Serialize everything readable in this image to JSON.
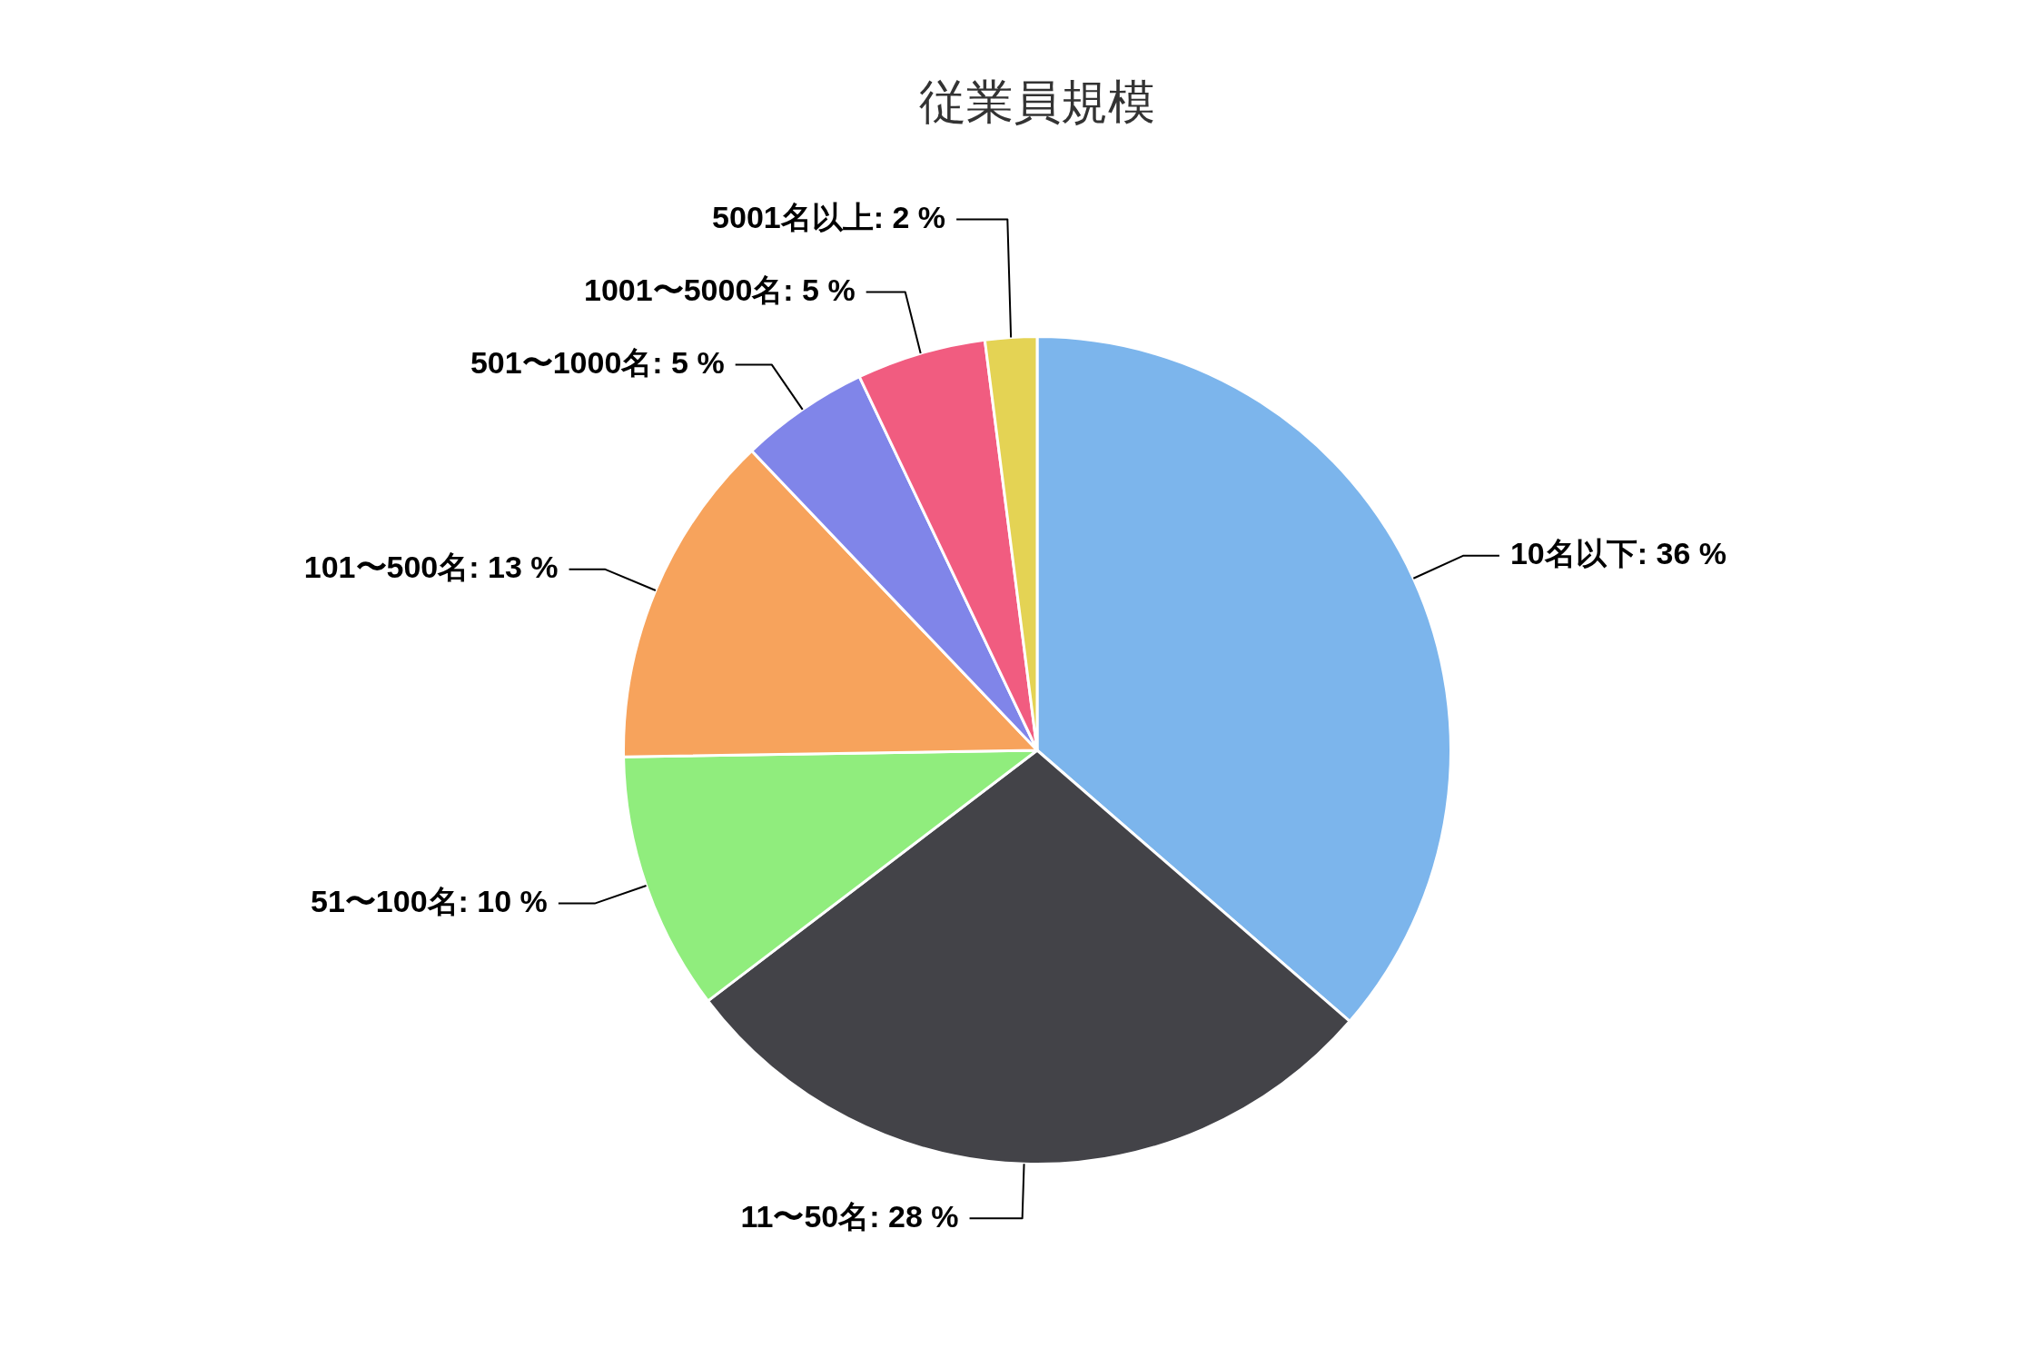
{
  "chart_data": {
    "type": "pie",
    "title": "従業員規模",
    "categories": [
      "10名以下",
      "11〜50名",
      "51〜100名",
      "101〜500名",
      "501〜1000名",
      "1001〜5000名",
      "5001名以上"
    ],
    "values": [
      36,
      28,
      10,
      13,
      5,
      5,
      2
    ],
    "value_labels": [
      "36 %",
      "28 %",
      "10 %",
      "13 %",
      "5 %",
      "5 %",
      "2 %"
    ],
    "colors": [
      "#7cb5ec",
      "#434348",
      "#90ed7d",
      "#f7a35c",
      "#8085e9",
      "#f15c80",
      "#e4d354"
    ],
    "legend": false
  }
}
